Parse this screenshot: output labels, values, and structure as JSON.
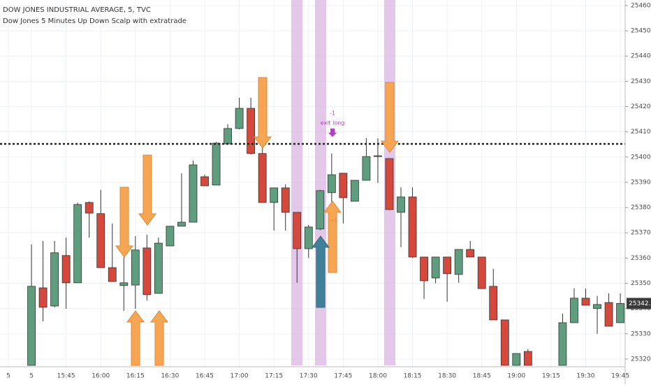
{
  "chart_data": {
    "type": "candlestick",
    "title": "DOW JONES INDUSTRIAL AVERAGE, 5, TVC",
    "subtitle": "Dow Jones 5 Minutes Up Down Scalp with extratrade",
    "categories": [
      "5",
      null,
      "5",
      null,
      null,
      "15:45",
      null,
      null,
      "16:00",
      null,
      null,
      "16:15",
      null,
      null,
      "16:30",
      null,
      null,
      "16:45",
      null,
      null,
      "17:00",
      null,
      null,
      "17:15",
      null,
      null,
      "17:30",
      null,
      null,
      "17:45",
      null,
      null,
      "18:00",
      null,
      null,
      "18:15",
      null,
      null,
      "18:30",
      null,
      null,
      "18:45",
      null,
      null,
      "19:00",
      null,
      null,
      "19:15",
      null,
      null,
      "19:30",
      null,
      null,
      "19:45"
    ],
    "open": [
      null,
      null,
      25317.5,
      25348.2,
      25341.0,
      25361.0,
      25350.2,
      25382.0,
      25377.6,
      25356.2,
      25349.1,
      25349.3,
      25364.0,
      25346.0,
      25364.8,
      25372.6,
      25374.2,
      25392.2,
      25388.9,
      25405.2,
      25411.3,
      25419.3,
      25401.4,
      25382.0,
      25387.8,
      25378.1,
      25363.7,
      25371.5,
      25385.9,
      25393.6,
      25382.5,
      25390.8,
      25400.2,
      25399.4,
      25378.1,
      25384.2,
      25360.4,
      25352.1,
      25360.4,
      25353.5,
      25363.4,
      25360.4,
      25348.8,
      25335.5,
      25317.5,
      25323.0,
      null,
      null,
      25317.5,
      25334.4,
      25344.1,
      25340.0,
      25342.4,
      25334.4
    ],
    "high": [
      null,
      null,
      25365.4,
      25366.8,
      25366.8,
      25368.1,
      25382.0,
      25382.5,
      25387.0,
      25373.7,
      25360.4,
      25368.7,
      25369.3,
      25368.1,
      25372.6,
      25393.6,
      25398.6,
      25393.0,
      25406.0,
      25413.0,
      25423.5,
      25423.5,
      25404.0,
      25387.8,
      25389.2,
      25378.1,
      25373.1,
      25387.0,
      25401.4,
      25393.6,
      25390.8,
      25407.4,
      25407.4,
      25399.4,
      25388.0,
      25388.0,
      25360.4,
      25360.4,
      25360.4,
      25363.4,
      25366.8,
      25360.4,
      25355.7,
      25335.5,
      25322.2,
      25324.0,
      null,
      null,
      25338.0,
      25348.0,
      25347.9,
      25345.0,
      25346.0,
      25346.0
    ],
    "low": [
      null,
      null,
      25317.5,
      25334.9,
      25340.5,
      25339.9,
      25350.2,
      25368.1,
      25356.2,
      25350.7,
      25339.1,
      25339.9,
      25343.2,
      25346.0,
      25364.8,
      25372.6,
      25374.2,
      25388.6,
      25388.9,
      25405.2,
      25411.0,
      25401.0,
      25382.0,
      25370.9,
      25370.9,
      25350.2,
      25360.0,
      25371.0,
      25377.8,
      25373.7,
      25382.5,
      25390.8,
      25389.7,
      25379.0,
      25364.3,
      25360.0,
      25343.8,
      25350.0,
      25342.7,
      25350.2,
      25360.4,
      25347.9,
      25335.5,
      25317.5,
      25317.5,
      25317.5,
      null,
      null,
      25317.5,
      25334.4,
      25341.3,
      25330.0,
      25333.0,
      25334.4
    ],
    "close": [
      null,
      null,
      25348.8,
      25340.5,
      25362.1,
      25350.2,
      25381.2,
      25377.8,
      25356.2,
      25350.7,
      25350.2,
      25363.2,
      25345.5,
      25365.9,
      25372.6,
      25374.2,
      25396.9,
      25388.6,
      25405.5,
      25411.3,
      25419.3,
      25401.4,
      25382.0,
      25387.8,
      25378.1,
      25363.7,
      25372.3,
      25386.7,
      25393.0,
      25383.9,
      25390.8,
      25400.2,
      25400.5,
      25379.2,
      25384.2,
      25360.4,
      25351.0,
      25360.4,
      25353.8,
      25363.4,
      25360.4,
      25347.9,
      25335.5,
      25317.5,
      25322.2,
      25317.5,
      null,
      null,
      25334.4,
      25344.1,
      25341.3,
      25341.6,
      25333.0,
      25342.0
    ],
    "up_color": "#5e9e7e",
    "down_color": "#d4493c",
    "ylim": [
      25317.5,
      25462.2
    ],
    "yticks": [
      25320,
      25330,
      25340,
      25350,
      25360,
      25370,
      25380,
      25390,
      25400,
      25410,
      25420,
      25430,
      25440,
      25450,
      25460
    ],
    "hline": 25405.2,
    "last_price": {
      "value": 25342.0,
      "label": "25342.0"
    },
    "annotations": [
      "-1",
      "exit long",
      "+1"
    ],
    "grid": true
  }
}
